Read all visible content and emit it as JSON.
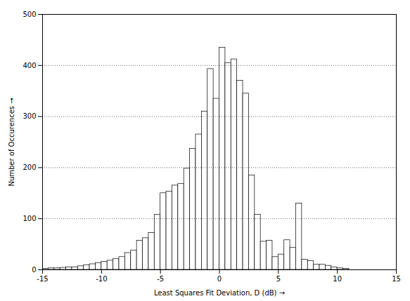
{
  "chart_data": {
    "type": "histogram",
    "bins": [
      -15.0,
      -14.5,
      -14.0,
      -13.5,
      -13.0,
      -12.5,
      -12.0,
      -11.5,
      -11.0,
      -10.5,
      -10.0,
      -9.5,
      -9.0,
      -8.5,
      -8.0,
      -7.5,
      -7.0,
      -6.5,
      -6.0,
      -5.5,
      -5.0,
      -4.5,
      -4.0,
      -3.5,
      -3.0,
      -2.5,
      -2.0,
      -1.5,
      -1.0,
      -0.5,
      0.0,
      0.5,
      1.0,
      1.5,
      2.0,
      2.5,
      3.0,
      3.5,
      4.0,
      4.5,
      5.0,
      5.5,
      6.0,
      6.5,
      7.0,
      7.5,
      8.0,
      8.5,
      9.0,
      9.5,
      10.0,
      10.5,
      11.0,
      11.5,
      12.0,
      12.5,
      13.0,
      13.5,
      14.0,
      14.5,
      15.0
    ],
    "values": [
      2,
      3,
      3,
      4,
      5,
      5,
      7,
      9,
      11,
      13,
      16,
      18,
      21,
      25,
      33,
      38,
      57,
      62,
      72,
      108,
      150,
      153,
      165,
      168,
      198,
      237,
      265,
      310,
      393,
      335,
      435,
      405,
      412,
      370,
      345,
      185,
      108,
      55,
      57,
      25,
      30,
      58,
      43,
      130,
      20,
      17,
      10,
      10,
      8,
      5,
      3,
      2,
      0,
      0,
      0,
      0,
      0,
      0,
      0,
      0
    ],
    "xlabel": "Least Squares Fit Deviation, D (dB)",
    "ylabel": "Number of Occurences",
    "xlim": [
      -15,
      15
    ],
    "ylim": [
      0,
      500
    ],
    "xticks": [
      -15,
      -10,
      -5,
      0,
      5,
      10,
      15
    ],
    "yticks": [
      0,
      100,
      200,
      300,
      400,
      500
    ],
    "color": "#ffffff",
    "grid": true
  }
}
